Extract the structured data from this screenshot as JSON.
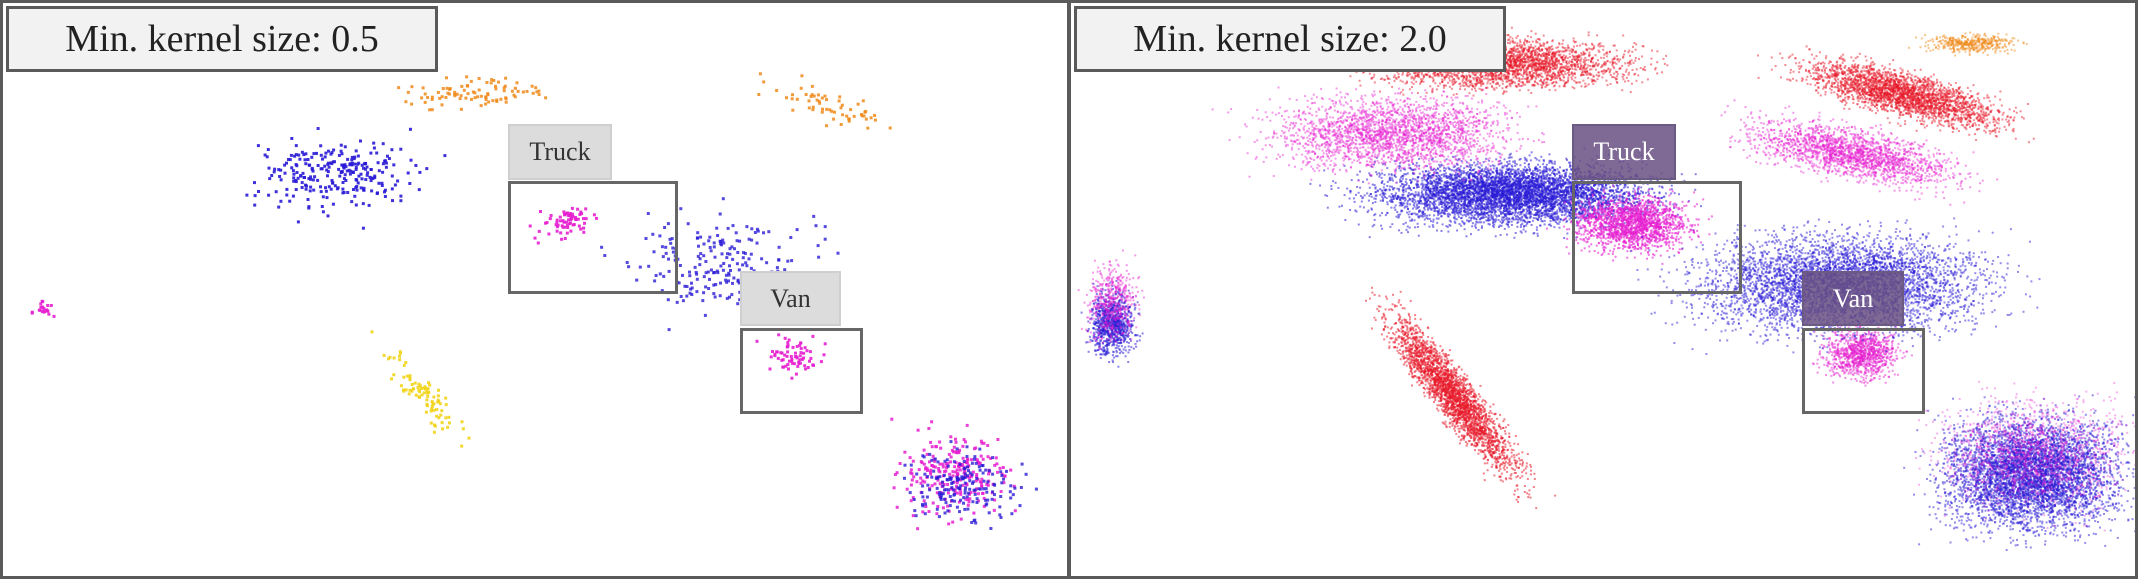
{
  "panels": [
    {
      "title": "Min. kernel size: 0.5",
      "boxes": [
        {
          "label": "Truck"
        },
        {
          "label": "Van"
        }
      ]
    },
    {
      "title": "Min. kernel size: 2.0",
      "boxes": [
        {
          "label": "Truck"
        },
        {
          "label": "Van"
        }
      ]
    }
  ],
  "colors": {
    "frame": "#5a5a5a",
    "title_bg": "#f2f2f2",
    "point_blue": "#2a1bd6",
    "point_magenta": "#e61fd0",
    "point_red": "#e81a2a",
    "point_orange": "#f08a1a",
    "point_yellow": "#f2d41a",
    "label_left_bg": "#dcdcdc",
    "label_right_bg": "#695082"
  }
}
